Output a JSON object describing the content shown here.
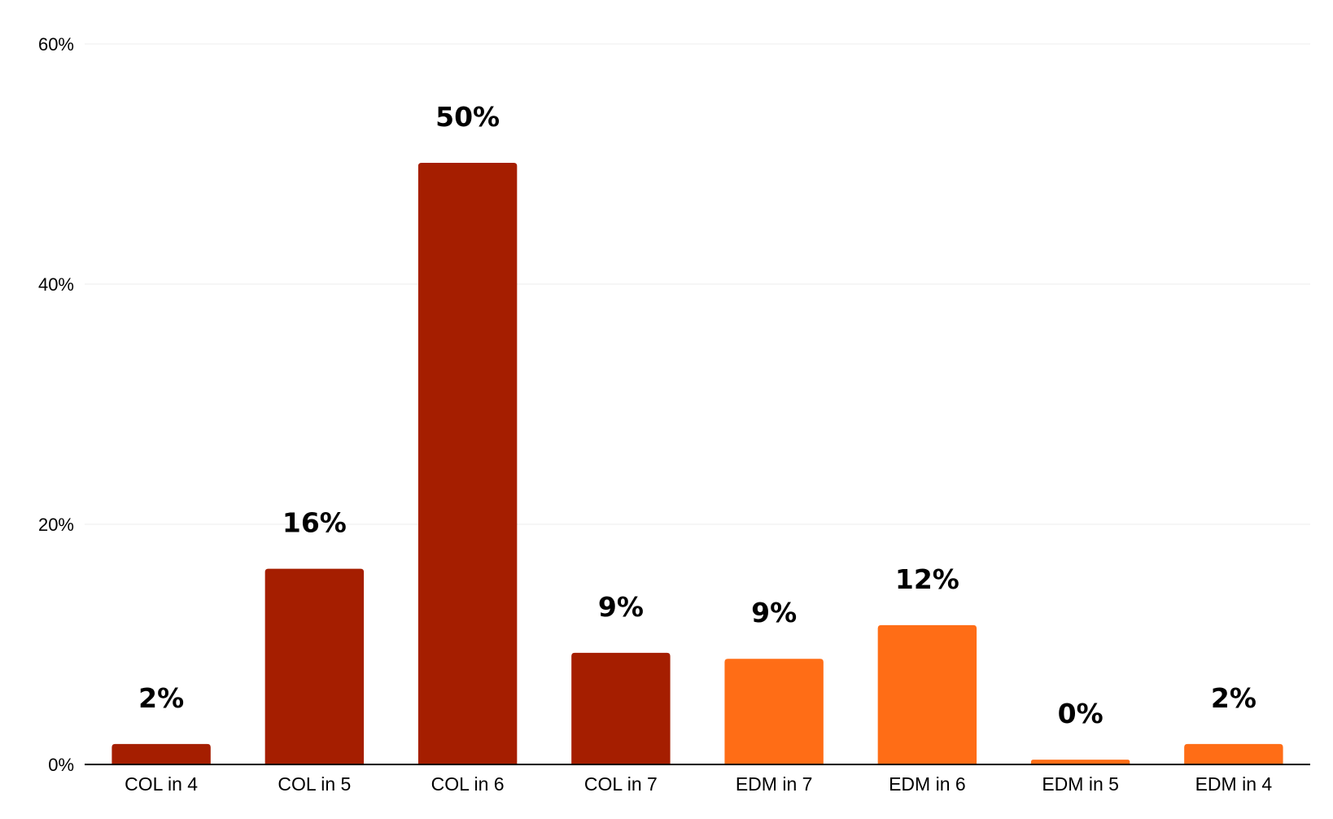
{
  "chart_data": {
    "type": "bar",
    "title": "",
    "xlabel": "",
    "ylabel": "",
    "categories": [
      "COL in 4",
      "COL in 5",
      "COL in 6",
      "COL in 7",
      "EDM in 7",
      "EDM in 6",
      "EDM in 5",
      "EDM in 4"
    ],
    "values": [
      1.7,
      16.3,
      50.1,
      9.3,
      8.8,
      11.6,
      0.4,
      1.7
    ],
    "data_labels": [
      "2%",
      "16%",
      "50%",
      "9%",
      "9%",
      "12%",
      "0%",
      "2%"
    ],
    "bar_colors": [
      "#a51e00",
      "#a51e00",
      "#a51e00",
      "#a51e00",
      "#ff6d16",
      "#ff6d16",
      "#ff6d16",
      "#ff6d16"
    ],
    "ylim": [
      0,
      60
    ],
    "yticks": [
      0,
      20,
      40,
      60
    ],
    "ytick_labels": [
      "0%",
      "20%",
      "40%",
      "60%"
    ],
    "grid": true,
    "legend": "none"
  }
}
